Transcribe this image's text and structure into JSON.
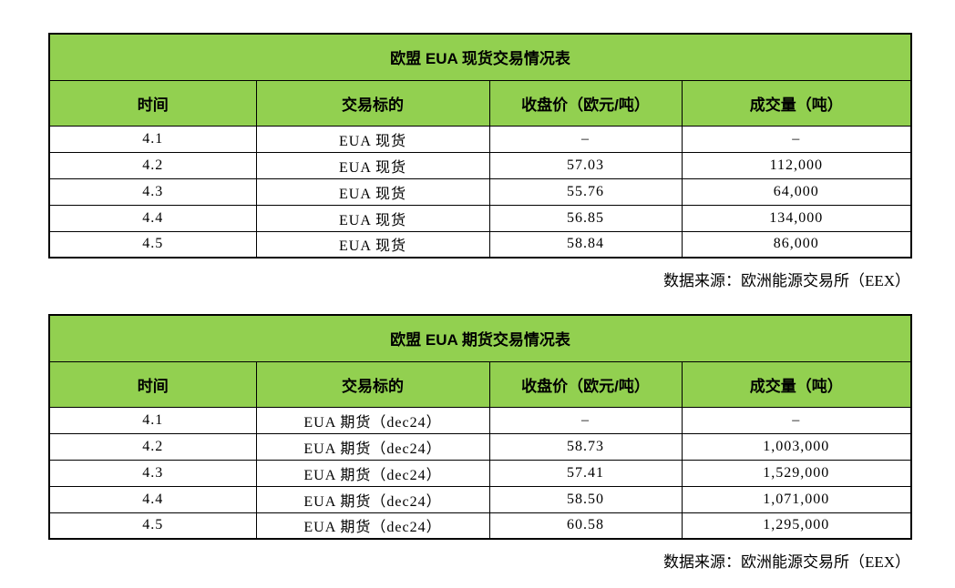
{
  "page": {
    "background": "#ffffff",
    "accent_green": "#92D050",
    "border_color": "#000000",
    "text_color": "#000000"
  },
  "tables": [
    {
      "title": "欧盟 EUA 现货交易情况表",
      "headers": [
        "时间",
        "交易标的",
        "收盘价（欧元/吨）",
        "成交量（吨）"
      ],
      "rows": [
        [
          "4.1",
          "EUA 现货",
          "–",
          "–"
        ],
        [
          "4.2",
          "EUA 现货",
          "57.03",
          "112,000"
        ],
        [
          "4.3",
          "EUA 现货",
          "55.76",
          "64,000"
        ],
        [
          "4.4",
          "EUA 现货",
          "56.85",
          "134,000"
        ],
        [
          "4.5",
          "EUA 现货",
          "58.84",
          "86,000"
        ]
      ],
      "source": "数据来源：欧洲能源交易所（EEX）"
    },
    {
      "title": "欧盟 EUA 期货交易情况表",
      "headers": [
        "时间",
        "交易标的",
        "收盘价（欧元/吨）",
        "成交量（吨）"
      ],
      "rows": [
        [
          "4.1",
          "EUA 期货（dec24）",
          "–",
          "–"
        ],
        [
          "4.2",
          "EUA 期货（dec24）",
          "58.73",
          "1,003,000"
        ],
        [
          "4.3",
          "EUA 期货（dec24）",
          "57.41",
          "1,529,000"
        ],
        [
          "4.4",
          "EUA 期货（dec24）",
          "58.50",
          "1,071,000"
        ],
        [
          "4.5",
          "EUA 期货（dec24）",
          "60.58",
          "1,295,000"
        ]
      ],
      "source": "数据来源：欧洲能源交易所（EEX）"
    }
  ]
}
